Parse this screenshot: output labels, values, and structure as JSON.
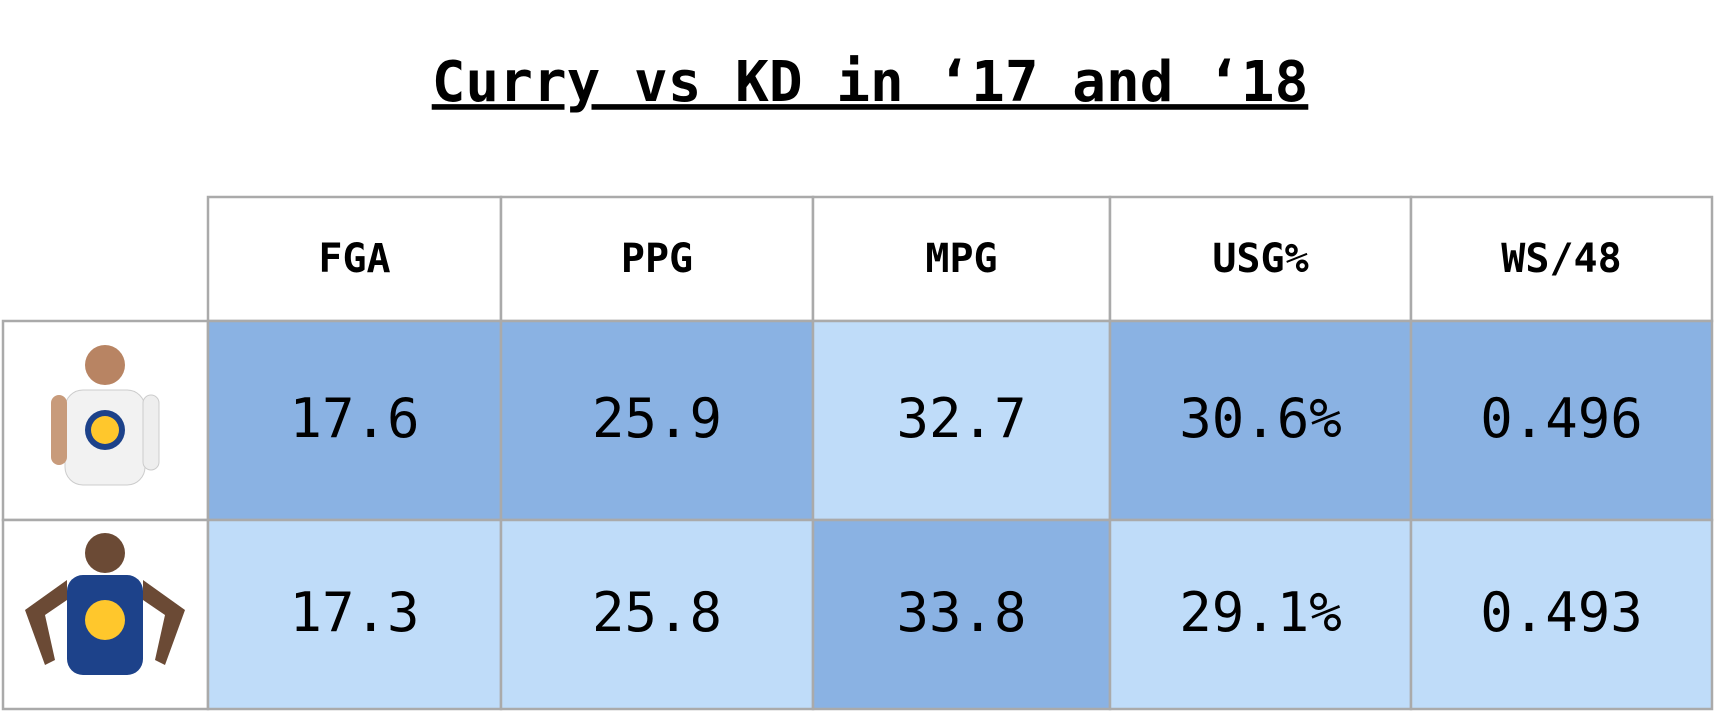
{
  "header": {
    "title": "Curry vs KD in ‘17 and ‘18"
  },
  "table": {
    "columns": [
      "FGA",
      "PPG",
      "MPG",
      "USG%",
      "WS/48"
    ],
    "rows": [
      [
        "17.6",
        "25.9",
        "32.7",
        "30.6%",
        "0.496"
      ],
      [
        "17.3",
        "25.8",
        "33.8",
        "29.1%",
        "0.493"
      ]
    ],
    "cell_colors": [
      [
        "#8ab2e3",
        "#8ab2e3",
        "#bfdcf9",
        "#8ab2e3",
        "#8ab2e3"
      ],
      [
        "#bfdcf9",
        "#bfdcf9",
        "#8ab2e3",
        "#bfdcf9",
        "#bfdcf9"
      ]
    ],
    "border_color": "#aaaaaa"
  }
}
